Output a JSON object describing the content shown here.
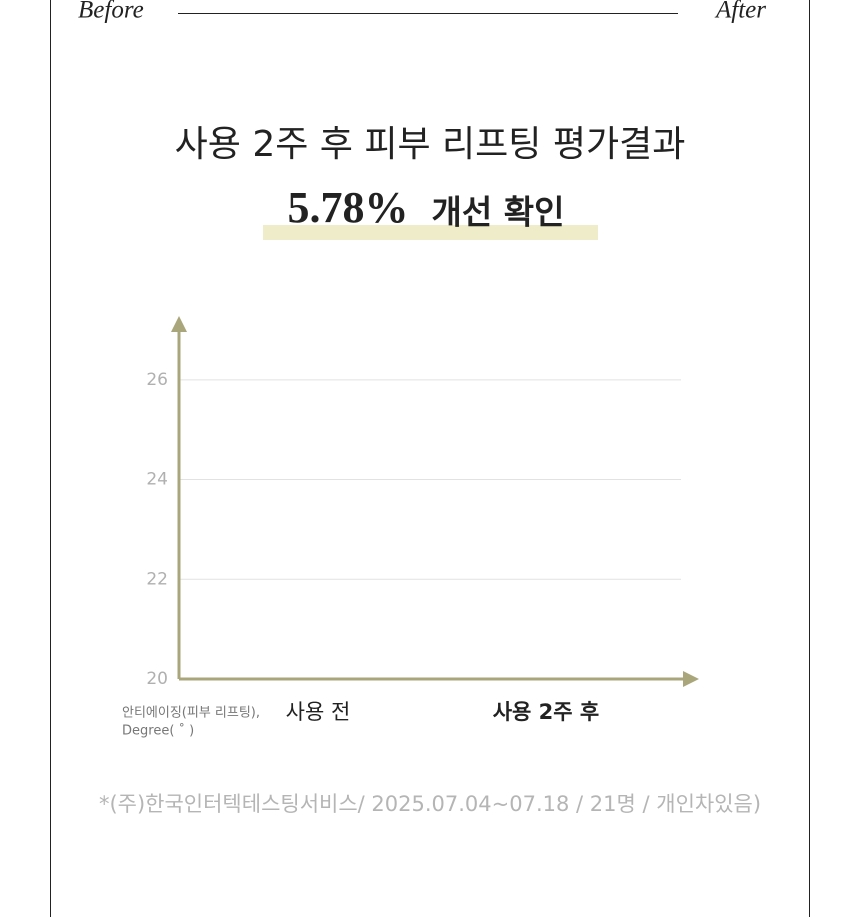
{
  "header": {
    "left": "Before",
    "right": "After"
  },
  "chart_data": {
    "type": "bar",
    "title": "사용 2주 후 피부 리프팅 평가결과",
    "headline_value": "5.78%",
    "headline_text": "개선 확인",
    "ylabel": [
      "안티에이징(피부 리프팅),",
      "Degree( ˚ )"
    ],
    "categories": [
      "사용 전",
      "사용 2주 후"
    ],
    "ylim": [
      20,
      27.2
    ],
    "yticks": [
      20,
      22,
      24,
      26
    ],
    "grid": true,
    "axis_color": "#a9a67c"
  },
  "footnote": "*(주)한국인터텍테스팅서비스/ 2025.07.04~07.18 / 21명 / 개인차있음)"
}
